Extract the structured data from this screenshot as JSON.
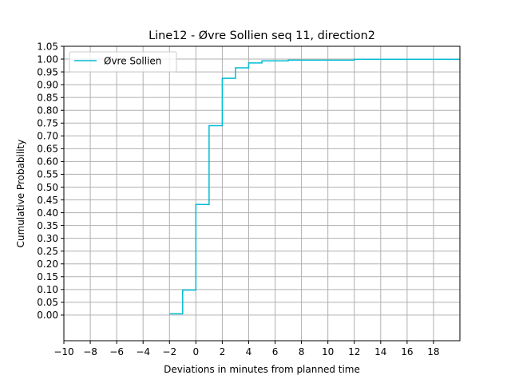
{
  "chart_data": {
    "type": "line",
    "step": "post",
    "title": "Line12 - Øvre Sollien seq 11, direction2",
    "xlabel": "Deviations in minutes from planned time",
    "ylabel": "Cumulative Probability",
    "xlim": [
      -10,
      20
    ],
    "ylim": [
      -0.1,
      1.05
    ],
    "xticks": [
      -10,
      -8,
      -6,
      -4,
      -2,
      0,
      2,
      4,
      6,
      8,
      10,
      12,
      14,
      16,
      18
    ],
    "yticks": [
      0.0,
      0.05,
      0.1,
      0.15,
      0.2,
      0.25,
      0.3,
      0.35,
      0.4,
      0.45,
      0.5,
      0.55,
      0.6,
      0.65,
      0.7,
      0.75,
      0.8,
      0.85,
      0.9,
      0.95,
      1.0,
      1.05
    ],
    "grid": true,
    "legend_position": "upper-left",
    "series": [
      {
        "name": "Øvre Sollien",
        "color": "#00bcd4",
        "x": [
          -2,
          -1,
          0,
          1,
          2,
          3,
          4,
          5,
          7,
          12,
          20
        ],
        "y": [
          0.005,
          0.098,
          0.432,
          0.74,
          0.925,
          0.966,
          0.985,
          0.993,
          0.996,
          0.999,
          0.999
        ]
      }
    ]
  }
}
